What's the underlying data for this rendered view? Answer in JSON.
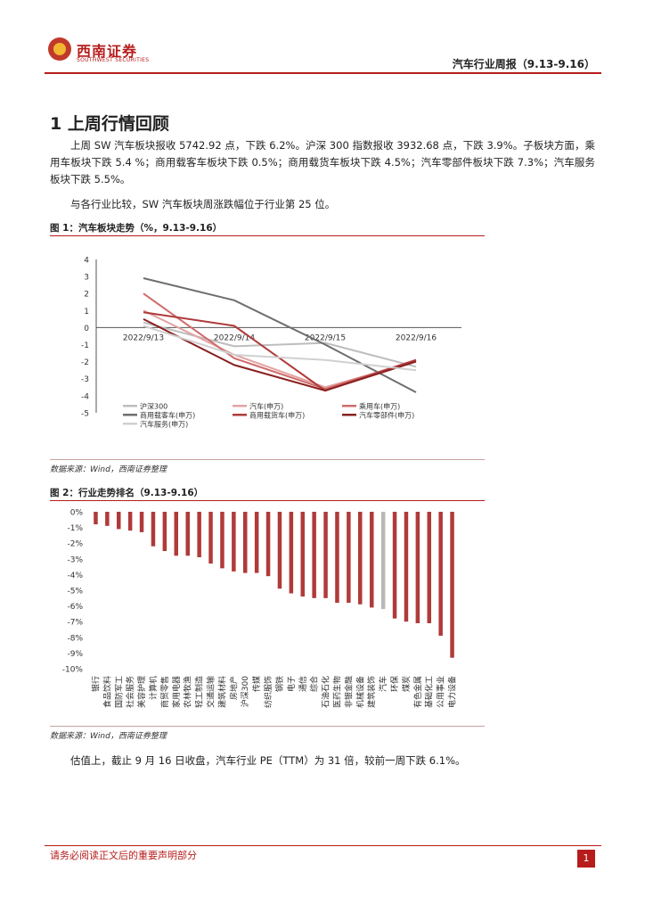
{
  "header": {
    "logo_cn": "西南证券",
    "logo_en": "SOUTHWEST SECURITIES",
    "report_title": "汽车行业周报（9.13-9.16）"
  },
  "section": {
    "heading": "1 上周行情回顾",
    "para1": "上周 SW 汽车板块报收 5742.92 点，下跌 6.2%。沪深 300 指数报收 3932.68 点，下跌 3.9%。子板块方面，乘用车板块下跌 5.4 %；商用载客车板块下跌 0.5%；商用载货车板块下跌 4.5%；汽车零部件板块下跌 7.3%；汽车服务板块下跌 5.5%。",
    "para2": "与各行业比较，SW 汽车板块周涨跌幅位于行业第 25 位。",
    "para3": "估值上，截止 9 月 16 日收盘，汽车行业 PE（TTM）为 31 倍，较前一周下跌 6.1%。"
  },
  "figure1": {
    "title": "图 1：汽车板块走势（%，9.13-9.16）",
    "source": "数据来源：Wind，西南证券整理"
  },
  "figure2": {
    "title": "图 2：行业走势排名（9.13-9.16）",
    "source": "数据来源：Wind，西南证券整理"
  },
  "footer": {
    "disclaimer": "请务必阅读正文后的重要声明部分",
    "page": "1"
  },
  "colors": {
    "brand": "#b71c1c",
    "bar": "#b03a3a",
    "bar_highlight": "#b8b8b8"
  },
  "chart_data": [
    {
      "type": "line",
      "categories": [
        "2022/9/13",
        "2022/9/14",
        "2022/9/15",
        "2022/9/16"
      ],
      "ylim": [
        -5,
        4
      ],
      "yticks": [
        4,
        3,
        2,
        1,
        0,
        -1,
        -2,
        -3,
        -4,
        -5
      ],
      "grid": false,
      "legend_position": "bottom",
      "series": [
        {
          "name": "沪深300",
          "color": "#bdbdbd",
          "values": [
            0.3,
            -1.1,
            -0.9,
            -2.3
          ]
        },
        {
          "name": "汽车(申万)",
          "color": "#e3a3a3",
          "values": [
            1.0,
            -1.6,
            -3.5,
            -2.0
          ]
        },
        {
          "name": "乘用车(申万)",
          "color": "#cf6b6b",
          "values": [
            2.0,
            -1.8,
            -3.6,
            -1.9
          ]
        },
        {
          "name": "商用载客车(申万)",
          "color": "#6e6e6e",
          "values": [
            2.9,
            1.6,
            -1.0,
            -3.8
          ]
        },
        {
          "name": "商用载货车(申万)",
          "color": "#b03a3a",
          "values": [
            0.9,
            0.1,
            -3.7,
            -1.9
          ]
        },
        {
          "name": "汽车零部件(申万)",
          "color": "#8a2020",
          "values": [
            0.5,
            -2.2,
            -3.7,
            -2.0
          ]
        },
        {
          "name": "汽车服务(申万)",
          "color": "#d0d0d0",
          "values": [
            0.1,
            -1.6,
            -1.9,
            -2.5
          ]
        }
      ]
    },
    {
      "type": "bar",
      "ylim": [
        -10,
        0
      ],
      "yticks": [
        "0%",
        "-1%",
        "-2%",
        "-3%",
        "-4%",
        "-5%",
        "-6%",
        "-7%",
        "-8%",
        "-9%",
        "-10%"
      ],
      "highlight": "汽车",
      "categories": [
        "银行",
        "食品饮料",
        "国防军工",
        "社会服务",
        "美容护理",
        "计算机",
        "商贸零售",
        "家用电器",
        "农林牧渔",
        "轻工制造",
        "交通运输",
        "建筑材料",
        "房地产",
        "沪深300",
        "传媒",
        "纺织服饰",
        "钢铁",
        "电子",
        "通信",
        "综合",
        "石油石化",
        "医药生物",
        "非银金融",
        "机械设备",
        "建筑装饰",
        "汽车",
        "环保",
        "煤炭",
        "有色金属",
        "基础化工",
        "公用事业",
        "电力设备"
      ],
      "values": [
        -0.8,
        -0.9,
        -1.1,
        -1.2,
        -1.3,
        -2.2,
        -2.5,
        -2.8,
        -2.8,
        -2.9,
        -3.3,
        -3.6,
        -3.8,
        -3.9,
        -3.9,
        -4.1,
        -4.9,
        -5.2,
        -5.4,
        -5.5,
        -5.5,
        -5.8,
        -5.8,
        -5.9,
        -6.1,
        -6.2,
        -6.8,
        -7.0,
        -7.1,
        -7.1,
        -7.9,
        -9.3
      ]
    }
  ]
}
